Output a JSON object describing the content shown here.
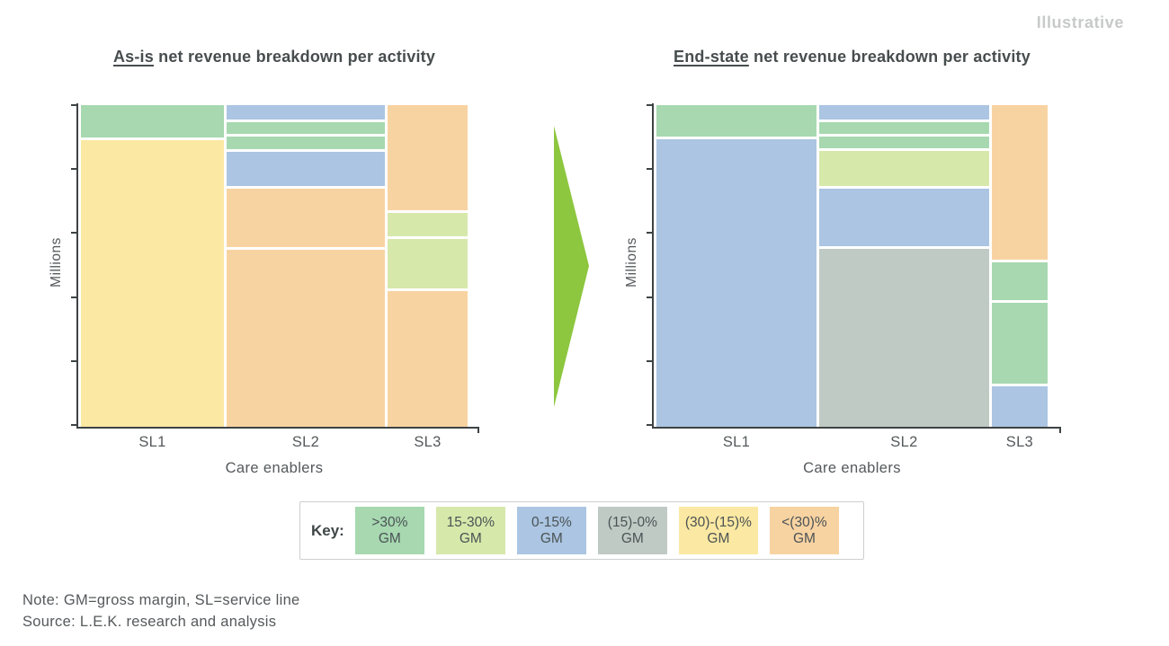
{
  "watermark": "Illustrative",
  "arrow": {
    "color": "#8dc63f",
    "direction": "right"
  },
  "key": {
    "label": "Key:",
    "items": [
      {
        "name": "gt30",
        "line1": ">30%",
        "line2": "GM",
        "color": "#a7d8b0"
      },
      {
        "name": "b15-30",
        "line1": "15-30%",
        "line2": "GM",
        "color": "#d7e8ab"
      },
      {
        "name": "b0-15",
        "line1": "0-15%",
        "line2": "GM",
        "color": "#abc5e2"
      },
      {
        "name": "neg15-0",
        "line1": "(15)-0%",
        "line2": "GM",
        "color": "#c0cac5"
      },
      {
        "name": "neg30-15",
        "line1": "(30)-(15)%",
        "line2": "GM",
        "color": "#fbe8a2"
      },
      {
        "name": "lt-neg30",
        "line1": "<(30)%",
        "line2": "GM",
        "color": "#f8d3a2"
      }
    ]
  },
  "notes": {
    "note": "Note: GM=gross margin, SL=service line",
    "source": "Source: L.E.K. research and analysis"
  },
  "chart_data": [
    {
      "type": "mosaic",
      "id": "as-is",
      "title_emphasis": "As-is",
      "title_rest": " net revenue breakdown per activity",
      "ylabel": "Millions",
      "xlabel": "Care enablers",
      "categories": [
        "SL1",
        "SL2",
        "SL3"
      ],
      "y_axis": {
        "tick_count": 6,
        "numeric_labels_shown": false,
        "grid": false
      },
      "columns": [
        {
          "category": "SL1",
          "width_frac": 0.375,
          "segments": [
            {
              "band": "gt30",
              "frac": 0.1
            },
            {
              "band": "neg30-15",
              "frac": 0.9
            }
          ]
        },
        {
          "category": "SL2",
          "width_frac": 0.415,
          "segments": [
            {
              "band": "b0-15",
              "frac": 0.046
            },
            {
              "band": "gt30",
              "frac": 0.038
            },
            {
              "band": "gt30",
              "frac": 0.04
            },
            {
              "band": "b0-15",
              "frac": 0.113
            },
            {
              "band": "lt-neg30",
              "frac": 0.19
            },
            {
              "band": "lt-neg30",
              "frac": 0.573
            }
          ]
        },
        {
          "category": "SL3",
          "width_frac": 0.21,
          "segments": [
            {
              "band": "lt-neg30",
              "frac": 0.335
            },
            {
              "band": "b15-30",
              "frac": 0.074
            },
            {
              "band": "b15-30",
              "frac": 0.158
            },
            {
              "band": "lt-neg30",
              "frac": 0.433
            }
          ]
        }
      ]
    },
    {
      "type": "mosaic",
      "id": "end-state",
      "title_emphasis": "End-state",
      "title_rest": " net revenue breakdown per activity",
      "ylabel": "Millions",
      "xlabel": "Care enablers",
      "categories": [
        "SL1",
        "SL2",
        "SL3"
      ],
      "y_axis": {
        "tick_count": 6,
        "numeric_labels_shown": false,
        "grid": false
      },
      "columns": [
        {
          "category": "SL1",
          "width_frac": 0.415,
          "segments": [
            {
              "band": "gt30",
              "frac": 0.098
            },
            {
              "band": "b0-15",
              "frac": 0.902
            }
          ]
        },
        {
          "category": "SL2",
          "width_frac": 0.44,
          "segments": [
            {
              "band": "b0-15",
              "frac": 0.048
            },
            {
              "band": "gt30",
              "frac": 0.037
            },
            {
              "band": "gt30",
              "frac": 0.037
            },
            {
              "band": "b15-30",
              "frac": 0.114
            },
            {
              "band": "b0-15",
              "frac": 0.186
            },
            {
              "band": "neg15-0",
              "frac": 0.578
            }
          ]
        },
        {
          "category": "SL3",
          "width_frac": 0.145,
          "segments": [
            {
              "band": "lt-neg30",
              "frac": 0.494
            },
            {
              "band": "gt30",
              "frac": 0.119
            },
            {
              "band": "gt30",
              "frac": 0.258
            },
            {
              "band": "b0-15",
              "frac": 0.129
            }
          ]
        }
      ]
    }
  ]
}
